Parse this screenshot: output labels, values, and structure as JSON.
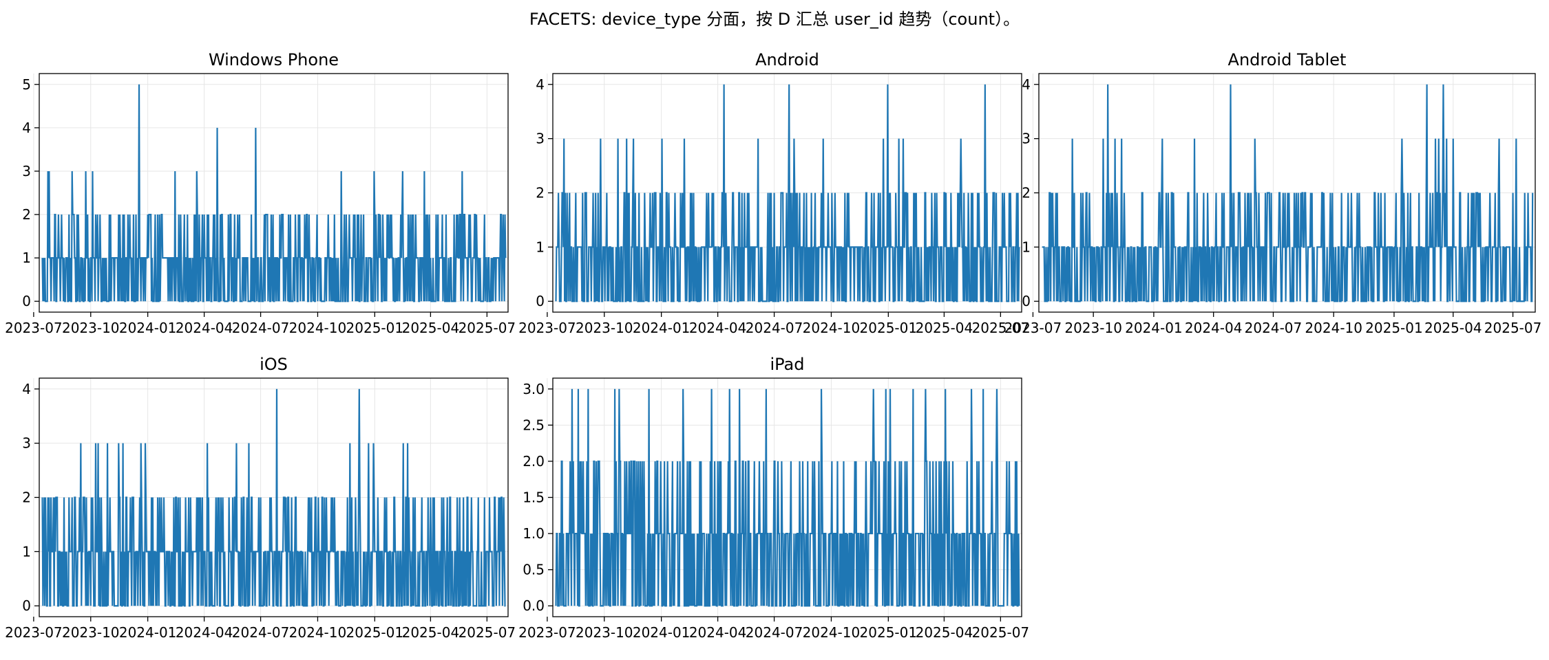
{
  "figure": {
    "title": "FACETS: device_type 分面，按 D 汇总 user_id 趋势（count）。"
  },
  "colors": {
    "line": "#1f77b4",
    "grid": "#e6e6e6",
    "axis": "#000000"
  },
  "chart_data": [
    {
      "type": "line",
      "title": "Windows Phone",
      "xlabel": "",
      "ylabel": "",
      "x_range": [
        "2023-07-10",
        "2025-08-04"
      ],
      "ylim": [
        -0.25,
        5.25
      ],
      "x_ticks": [
        "2023-07",
        "2023-10",
        "2024-01",
        "2024-04",
        "2024-07",
        "2024-10",
        "2025-01",
        "2025-04",
        "2025-07"
      ],
      "y_ticks": [
        "0",
        "1",
        "2",
        "3",
        "4",
        "5"
      ],
      "grid": true,
      "series": [
        {
          "start": "2023-07-15",
          "end": "2025-07-31",
          "peaks": [
            {
              "date": "2023-07-24",
              "value": 3
            },
            {
              "date": "2023-07-26",
              "value": 3
            },
            {
              "date": "2023-09-01",
              "value": 3
            },
            {
              "date": "2023-09-23",
              "value": 3
            },
            {
              "date": "2023-10-04",
              "value": 3
            },
            {
              "date": "2023-12-18",
              "value": 5
            },
            {
              "date": "2024-02-14",
              "value": 3
            },
            {
              "date": "2024-03-20",
              "value": 3
            },
            {
              "date": "2024-04-22",
              "value": 4
            },
            {
              "date": "2024-06-23",
              "value": 4
            },
            {
              "date": "2024-11-08",
              "value": 3
            },
            {
              "date": "2024-12-31",
              "value": 3
            },
            {
              "date": "2025-02-15",
              "value": 3
            },
            {
              "date": "2025-03-22",
              "value": 3
            },
            {
              "date": "2025-05-22",
              "value": 3
            }
          ],
          "quiet_periods": []
        }
      ]
    },
    {
      "type": "line",
      "title": "Android",
      "xlabel": "",
      "ylabel": "",
      "x_range": [
        "2023-07-10",
        "2025-08-04"
      ],
      "ylim": [
        -0.2,
        4.2
      ],
      "x_ticks": [
        "2023-07",
        "2023-10",
        "2024-01",
        "2024-04",
        "2024-07",
        "2024-10",
        "2025-01",
        "2025-04",
        "2025-07"
      ],
      "y_ticks": [
        "0",
        "1",
        "2",
        "3",
        "4"
      ],
      "grid": true,
      "series": [
        {
          "start": "2023-07-15",
          "end": "2025-07-31",
          "peaks": [
            {
              "date": "2023-07-28",
              "value": 3
            },
            {
              "date": "2023-09-25",
              "value": 3
            },
            {
              "date": "2023-10-23",
              "value": 3
            },
            {
              "date": "2023-11-06",
              "value": 3
            },
            {
              "date": "2023-11-17",
              "value": 3
            },
            {
              "date": "2024-01-02",
              "value": 3
            },
            {
              "date": "2024-02-07",
              "value": 3
            },
            {
              "date": "2024-04-11",
              "value": 4
            },
            {
              "date": "2024-06-05",
              "value": 3
            },
            {
              "date": "2024-07-25",
              "value": 4
            },
            {
              "date": "2024-08-02",
              "value": 3
            },
            {
              "date": "2024-09-18",
              "value": 3
            },
            {
              "date": "2024-12-24",
              "value": 3
            },
            {
              "date": "2024-12-31",
              "value": 4
            },
            {
              "date": "2025-01-18",
              "value": 3
            },
            {
              "date": "2025-01-25",
              "value": 3
            },
            {
              "date": "2025-04-28",
              "value": 3
            },
            {
              "date": "2025-06-06",
              "value": 4
            }
          ],
          "quiet_periods": [
            [
              "2024-10-10",
              "2024-12-10"
            ]
          ]
        }
      ]
    },
    {
      "type": "line",
      "title": "Android Tablet",
      "xlabel": "",
      "ylabel": "",
      "x_range": [
        "2023-07-10",
        "2025-08-04"
      ],
      "ylim": [
        -0.2,
        4.2
      ],
      "x_ticks": [
        "2023-07",
        "2023-10",
        "2024-01",
        "2024-04",
        "2024-07",
        "2024-10",
        "2025-01",
        "2025-04",
        "2025-07"
      ],
      "y_ticks": [
        "0",
        "1",
        "2",
        "3",
        "4"
      ],
      "grid": true,
      "series": [
        {
          "start": "2023-07-15",
          "end": "2025-07-31",
          "peaks": [
            {
              "date": "2023-08-30",
              "value": 3
            },
            {
              "date": "2023-10-16",
              "value": 3
            },
            {
              "date": "2023-10-23",
              "value": 4
            },
            {
              "date": "2023-11-03",
              "value": 3
            },
            {
              "date": "2023-11-13",
              "value": 3
            },
            {
              "date": "2024-01-14",
              "value": 3
            },
            {
              "date": "2024-03-03",
              "value": 3
            },
            {
              "date": "2024-04-27",
              "value": 4
            },
            {
              "date": "2024-06-03",
              "value": 3
            },
            {
              "date": "2025-01-13",
              "value": 3
            },
            {
              "date": "2025-02-20",
              "value": 4
            },
            {
              "date": "2025-03-05",
              "value": 3
            },
            {
              "date": "2025-03-10",
              "value": 3
            },
            {
              "date": "2025-03-17",
              "value": 4
            },
            {
              "date": "2025-03-22",
              "value": 3
            },
            {
              "date": "2025-04-01",
              "value": 3
            },
            {
              "date": "2025-06-10",
              "value": 3
            },
            {
              "date": "2025-07-06",
              "value": 3
            }
          ],
          "quiet_periods": []
        }
      ]
    },
    {
      "type": "line",
      "title": "iOS",
      "xlabel": "",
      "ylabel": "",
      "x_range": [
        "2023-07-10",
        "2025-08-04"
      ],
      "ylim": [
        -0.2,
        4.2
      ],
      "x_ticks": [
        "2023-07",
        "2023-10",
        "2024-01",
        "2024-04",
        "2024-07",
        "2024-10",
        "2025-01",
        "2025-04",
        "2025-07"
      ],
      "y_ticks": [
        "0",
        "1",
        "2",
        "3",
        "4"
      ],
      "grid": true,
      "series": [
        {
          "start": "2023-07-15",
          "end": "2025-07-31",
          "peaks": [
            {
              "date": "2023-09-15",
              "value": 3
            },
            {
              "date": "2023-10-09",
              "value": 3
            },
            {
              "date": "2023-10-13",
              "value": 3
            },
            {
              "date": "2023-10-28",
              "value": 3
            },
            {
              "date": "2023-11-15",
              "value": 3
            },
            {
              "date": "2023-11-22",
              "value": 3
            },
            {
              "date": "2023-12-21",
              "value": 3
            },
            {
              "date": "2023-12-28",
              "value": 3
            },
            {
              "date": "2024-04-06",
              "value": 3
            },
            {
              "date": "2024-05-23",
              "value": 3
            },
            {
              "date": "2024-06-12",
              "value": 3
            },
            {
              "date": "2024-07-27",
              "value": 4
            },
            {
              "date": "2024-11-22",
              "value": 3
            },
            {
              "date": "2024-12-07",
              "value": 4
            },
            {
              "date": "2024-12-22",
              "value": 3
            },
            {
              "date": "2024-12-30",
              "value": 3
            },
            {
              "date": "2025-02-16",
              "value": 3
            },
            {
              "date": "2025-02-23",
              "value": 3
            }
          ],
          "quiet_periods": []
        }
      ]
    },
    {
      "type": "line",
      "title": "iPad",
      "xlabel": "",
      "ylabel": "",
      "x_range": [
        "2023-07-10",
        "2025-08-04"
      ],
      "ylim": [
        -0.15,
        3.15
      ],
      "x_ticks": [
        "2023-07",
        "2023-10",
        "2024-01",
        "2024-04",
        "2024-07",
        "2024-10",
        "2025-01",
        "2025-04",
        "2025-07"
      ],
      "y_ticks": [
        "0.0",
        "0.5",
        "1.0",
        "1.5",
        "2.0",
        "2.5",
        "3.0"
      ],
      "grid": true,
      "series": [
        {
          "start": "2023-07-15",
          "end": "2025-07-31",
          "peaks": [
            {
              "date": "2023-08-10",
              "value": 3
            },
            {
              "date": "2023-08-20",
              "value": 3
            },
            {
              "date": "2023-09-05",
              "value": 3
            },
            {
              "date": "2023-10-18",
              "value": 3
            },
            {
              "date": "2023-10-25",
              "value": 3
            },
            {
              "date": "2023-12-12",
              "value": 3
            },
            {
              "date": "2024-02-05",
              "value": 3
            },
            {
              "date": "2024-03-22",
              "value": 3
            },
            {
              "date": "2024-04-20",
              "value": 3
            },
            {
              "date": "2024-05-06",
              "value": 3
            },
            {
              "date": "2024-06-18",
              "value": 3
            },
            {
              "date": "2024-09-15",
              "value": 3
            },
            {
              "date": "2024-12-08",
              "value": 3
            },
            {
              "date": "2024-12-28",
              "value": 3
            },
            {
              "date": "2025-01-04",
              "value": 3
            },
            {
              "date": "2025-02-10",
              "value": 3
            },
            {
              "date": "2025-03-02",
              "value": 3
            },
            {
              "date": "2025-04-03",
              "value": 3
            },
            {
              "date": "2025-05-15",
              "value": 3
            },
            {
              "date": "2025-06-03",
              "value": 3
            },
            {
              "date": "2025-06-25",
              "value": 3
            }
          ],
          "quiet_periods": []
        }
      ]
    }
  ]
}
